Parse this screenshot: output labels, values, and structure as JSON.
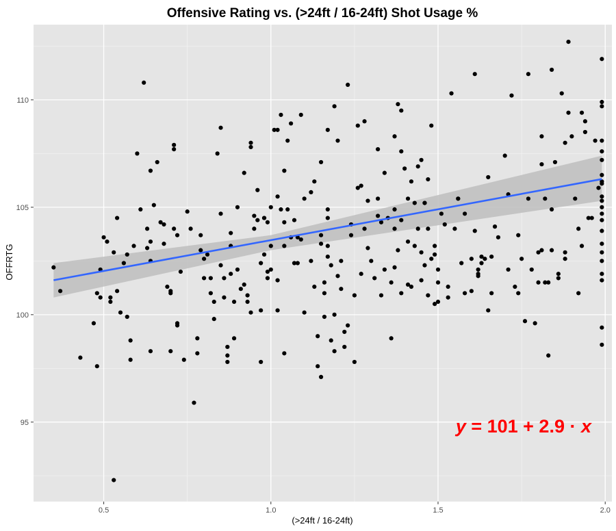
{
  "chart_data": {
    "type": "scatter",
    "title": "Offensive Rating vs. (>24ft / 16-24ft)  Shot Usage %",
    "xlabel": "(>24ft / 16-24ft)",
    "ylabel": "OFFRTG",
    "xlim": [
      0.29,
      2.02
    ],
    "ylim": [
      91.3,
      113.5
    ],
    "x_ticks": [
      0.5,
      1.0,
      1.5,
      2.0
    ],
    "x_tick_labels": [
      "0.5",
      "1.0",
      "1.5",
      "2.0"
    ],
    "y_ticks": [
      95,
      100,
      105,
      110
    ],
    "y_tick_labels": [
      "95",
      "100",
      "105",
      "110"
    ],
    "grid": true,
    "background": "#e5e5e5",
    "point_color": "#000000",
    "fit": {
      "method": "linear regression",
      "intercept": 100.6,
      "slope": 2.87,
      "x_range": [
        0.35,
        1.99
      ],
      "ci_lower": [
        [
          0.35,
          100.8
        ],
        [
          1.0,
          103.0
        ],
        [
          1.99,
          105.3
        ]
      ],
      "ci_upper": [
        [
          0.35,
          102.4
        ],
        [
          1.0,
          103.7
        ],
        [
          1.99,
          107.4
        ]
      ],
      "line_color": "#3366ff",
      "band_color": "#bebebe"
    },
    "annotation": {
      "parts": [
        "y",
        " = 101 + 2.9 · ",
        "x"
      ],
      "color": "#ff0000"
    },
    "points": [
      [
        0.35,
        102.2
      ],
      [
        0.37,
        101.1
      ],
      [
        0.43,
        98.0
      ],
      [
        0.47,
        99.6
      ],
      [
        0.48,
        101.0
      ],
      [
        0.48,
        97.6
      ],
      [
        0.49,
        102.1
      ],
      [
        0.49,
        100.8
      ],
      [
        0.5,
        103.6
      ],
      [
        0.51,
        103.4
      ],
      [
        0.52,
        100.6
      ],
      [
        0.52,
        100.8
      ],
      [
        0.53,
        102.9
      ],
      [
        0.54,
        101.1
      ],
      [
        0.54,
        104.5
      ],
      [
        0.55,
        100.1
      ],
      [
        0.56,
        102.4
      ],
      [
        0.57,
        102.8
      ],
      [
        0.57,
        99.9
      ],
      [
        0.58,
        98.8
      ],
      [
        0.58,
        97.9
      ],
      [
        0.59,
        103.2
      ],
      [
        0.6,
        107.5
      ],
      [
        0.61,
        104.9
      ],
      [
        0.62,
        110.8
      ],
      [
        0.63,
        103.1
      ],
      [
        0.63,
        104.0
      ],
      [
        0.64,
        106.7
      ],
      [
        0.64,
        103.4
      ],
      [
        0.64,
        102.5
      ],
      [
        0.64,
        98.3
      ],
      [
        0.65,
        105.1
      ],
      [
        0.66,
        107.1
      ],
      [
        0.67,
        104.3
      ],
      [
        0.68,
        104.2
      ],
      [
        0.68,
        103.3
      ],
      [
        0.69,
        101.3
      ],
      [
        0.7,
        101.1
      ],
      [
        0.7,
        101.0
      ],
      [
        0.7,
        98.3
      ],
      [
        0.71,
        107.9
      ],
      [
        0.71,
        107.7
      ],
      [
        0.71,
        104.0
      ],
      [
        0.72,
        103.7
      ],
      [
        0.72,
        99.6
      ],
      [
        0.72,
        99.5
      ],
      [
        0.73,
        102.0
      ],
      [
        0.74,
        97.9
      ],
      [
        0.75,
        104.8
      ],
      [
        0.76,
        104.0
      ],
      [
        0.77,
        95.9
      ],
      [
        0.78,
        98.2
      ],
      [
        0.78,
        98.9
      ],
      [
        0.79,
        103.7
      ],
      [
        0.79,
        103.0
      ],
      [
        0.8,
        102.6
      ],
      [
        0.8,
        101.7
      ],
      [
        0.81,
        102.8
      ],
      [
        0.82,
        101.7
      ],
      [
        0.82,
        101.0
      ],
      [
        0.83,
        100.6
      ],
      [
        0.83,
        99.8
      ],
      [
        0.84,
        107.5
      ],
      [
        0.85,
        108.7
      ],
      [
        0.85,
        104.7
      ],
      [
        0.85,
        102.3
      ],
      [
        0.86,
        101.7
      ],
      [
        0.86,
        100.8
      ],
      [
        0.87,
        98.5
      ],
      [
        0.87,
        98.1
      ],
      [
        0.87,
        97.8
      ],
      [
        0.88,
        103.8
      ],
      [
        0.88,
        103.2
      ],
      [
        0.88,
        101.9
      ],
      [
        0.89,
        98.9
      ],
      [
        0.89,
        100.6
      ],
      [
        0.9,
        105.0
      ],
      [
        0.9,
        102.1
      ],
      [
        0.91,
        101.2
      ],
      [
        0.92,
        106.6
      ],
      [
        0.92,
        101.4
      ],
      [
        0.93,
        100.6
      ],
      [
        0.93,
        100.9
      ],
      [
        0.94,
        100.1
      ],
      [
        0.94,
        108.0
      ],
      [
        0.94,
        107.8
      ],
      [
        0.95,
        104.0
      ],
      [
        0.95,
        104.6
      ],
      [
        0.96,
        105.8
      ],
      [
        0.96,
        104.4
      ],
      [
        0.97,
        100.2
      ],
      [
        0.97,
        102.4
      ],
      [
        0.97,
        97.8
      ],
      [
        0.98,
        104.5
      ],
      [
        0.98,
        104.5
      ],
      [
        0.98,
        102.8
      ],
      [
        0.99,
        104.3
      ],
      [
        0.99,
        102.0
      ],
      [
        0.99,
        101.7
      ],
      [
        1.0,
        105.0
      ],
      [
        1.0,
        103.2
      ],
      [
        1.0,
        102.1
      ],
      [
        1.01,
        108.6
      ],
      [
        1.02,
        108.6
      ],
      [
        1.02,
        105.5
      ],
      [
        1.02,
        101.6
      ],
      [
        1.02,
        100.2
      ],
      [
        1.03,
        109.3
      ],
      [
        1.03,
        104.9
      ],
      [
        1.04,
        106.7
      ],
      [
        1.04,
        104.3
      ],
      [
        1.04,
        103.2
      ],
      [
        1.04,
        98.2
      ],
      [
        1.05,
        108.1
      ],
      [
        1.05,
        104.9
      ],
      [
        1.06,
        108.9
      ],
      [
        1.06,
        103.6
      ],
      [
        1.07,
        102.4
      ],
      [
        1.07,
        104.4
      ],
      [
        1.08,
        103.6
      ],
      [
        1.08,
        102.4
      ],
      [
        1.09,
        109.3
      ],
      [
        1.09,
        103.5
      ],
      [
        1.1,
        105.4
      ],
      [
        1.1,
        100.1
      ],
      [
        1.12,
        105.7
      ],
      [
        1.12,
        102.5
      ],
      [
        1.13,
        106.2
      ],
      [
        1.13,
        101.3
      ],
      [
        1.14,
        99.0
      ],
      [
        1.14,
        97.6
      ],
      [
        1.15,
        107.1
      ],
      [
        1.15,
        103.7
      ],
      [
        1.15,
        103.3
      ],
      [
        1.15,
        97.1
      ],
      [
        1.16,
        101.5
      ],
      [
        1.16,
        99.9
      ],
      [
        1.16,
        101.0
      ],
      [
        1.17,
        108.6
      ],
      [
        1.17,
        104.5
      ],
      [
        1.17,
        104.9
      ],
      [
        1.17,
        103.2
      ],
      [
        1.17,
        102.7
      ],
      [
        1.18,
        102.3
      ],
      [
        1.18,
        98.8
      ],
      [
        1.19,
        109.7
      ],
      [
        1.19,
        98.3
      ],
      [
        1.19,
        100.0
      ],
      [
        1.2,
        108.1
      ],
      [
        1.2,
        101.8
      ],
      [
        1.21,
        102.5
      ],
      [
        1.21,
        101.2
      ],
      [
        1.22,
        99.2
      ],
      [
        1.22,
        98.5
      ],
      [
        1.23,
        110.7
      ],
      [
        1.23,
        99.5
      ],
      [
        1.24,
        104.2
      ],
      [
        1.24,
        103.7
      ],
      [
        1.25,
        100.9
      ],
      [
        1.25,
        97.8
      ],
      [
        1.26,
        108.8
      ],
      [
        1.26,
        105.9
      ],
      [
        1.27,
        106.0
      ],
      [
        1.27,
        101.9
      ],
      [
        1.28,
        109.0
      ],
      [
        1.28,
        104.0
      ],
      [
        1.29,
        105.3
      ],
      [
        1.29,
        103.1
      ],
      [
        1.3,
        102.5
      ],
      [
        1.31,
        101.7
      ],
      [
        1.32,
        107.7
      ],
      [
        1.32,
        105.4
      ],
      [
        1.32,
        104.6
      ],
      [
        1.33,
        104.3
      ],
      [
        1.33,
        100.9
      ],
      [
        1.34,
        106.6
      ],
      [
        1.34,
        102.1
      ],
      [
        1.35,
        104.5
      ],
      [
        1.36,
        101.5
      ],
      [
        1.36,
        98.9
      ],
      [
        1.37,
        108.3
      ],
      [
        1.37,
        104.9
      ],
      [
        1.37,
        104.0
      ],
      [
        1.37,
        102.2
      ],
      [
        1.38,
        109.8
      ],
      [
        1.38,
        103.0
      ],
      [
        1.39,
        109.5
      ],
      [
        1.39,
        107.6
      ],
      [
        1.39,
        104.4
      ],
      [
        1.39,
        101.0
      ],
      [
        1.4,
        106.8
      ],
      [
        1.41,
        105.4
      ],
      [
        1.41,
        103.4
      ],
      [
        1.41,
        101.4
      ],
      [
        1.42,
        106.2
      ],
      [
        1.42,
        101.3
      ],
      [
        1.43,
        105.2
      ],
      [
        1.43,
        103.2
      ],
      [
        1.44,
        106.9
      ],
      [
        1.44,
        104.0
      ],
      [
        1.45,
        107.2
      ],
      [
        1.45,
        102.9
      ],
      [
        1.45,
        101.6
      ],
      [
        1.46,
        105.2
      ],
      [
        1.46,
        105.2
      ],
      [
        1.46,
        102.3
      ],
      [
        1.47,
        106.3
      ],
      [
        1.47,
        104.0
      ],
      [
        1.47,
        100.9
      ],
      [
        1.48,
        108.8
      ],
      [
        1.48,
        102.6
      ],
      [
        1.49,
        103.2
      ],
      [
        1.49,
        102.8
      ],
      [
        1.49,
        100.5
      ],
      [
        1.5,
        102.1
      ],
      [
        1.5,
        101.5
      ],
      [
        1.5,
        100.6
      ],
      [
        1.51,
        104.7
      ],
      [
        1.52,
        104.2
      ],
      [
        1.53,
        101.3
      ],
      [
        1.53,
        100.8
      ],
      [
        1.54,
        110.3
      ],
      [
        1.55,
        104.0
      ],
      [
        1.56,
        105.4
      ],
      [
        1.56,
        105.4
      ],
      [
        1.57,
        102.4
      ],
      [
        1.58,
        104.7
      ],
      [
        1.58,
        101.0
      ],
      [
        1.6,
        102.6
      ],
      [
        1.6,
        101.1
      ],
      [
        1.61,
        111.2
      ],
      [
        1.61,
        103.9
      ],
      [
        1.62,
        102.1
      ],
      [
        1.62,
        101.8
      ],
      [
        1.62,
        101.9
      ],
      [
        1.63,
        102.7
      ],
      [
        1.63,
        102.4
      ],
      [
        1.64,
        102.6
      ],
      [
        1.65,
        106.4
      ],
      [
        1.65,
        100.2
      ],
      [
        1.66,
        102.7
      ],
      [
        1.66,
        101.0
      ],
      [
        1.67,
        104.1
      ],
      [
        1.68,
        103.6
      ],
      [
        1.7,
        107.4
      ],
      [
        1.71,
        105.6
      ],
      [
        1.71,
        102.1
      ],
      [
        1.72,
        110.2
      ],
      [
        1.73,
        101.3
      ],
      [
        1.74,
        103.7
      ],
      [
        1.74,
        101.0
      ],
      [
        1.75,
        102.6
      ],
      [
        1.76,
        99.7
      ],
      [
        1.77,
        111.2
      ],
      [
        1.77,
        105.4
      ],
      [
        1.78,
        102.1
      ],
      [
        1.79,
        99.6
      ],
      [
        1.8,
        102.9
      ],
      [
        1.8,
        101.5
      ],
      [
        1.81,
        108.3
      ],
      [
        1.81,
        107.0
      ],
      [
        1.81,
        103.0
      ],
      [
        1.82,
        105.4
      ],
      [
        1.82,
        101.5
      ],
      [
        1.83,
        98.1
      ],
      [
        1.83,
        101.5
      ],
      [
        1.84,
        111.4
      ],
      [
        1.84,
        104.9
      ],
      [
        1.84,
        103.0
      ],
      [
        1.85,
        107.1
      ],
      [
        1.86,
        101.7
      ],
      [
        1.86,
        101.9
      ],
      [
        1.87,
        110.3
      ],
      [
        1.88,
        108.0
      ],
      [
        1.88,
        102.9
      ],
      [
        1.88,
        102.6
      ],
      [
        1.89,
        112.7
      ],
      [
        1.89,
        109.4
      ],
      [
        1.9,
        108.3
      ],
      [
        1.91,
        105.4
      ],
      [
        1.92,
        101.0
      ],
      [
        1.92,
        104.0
      ],
      [
        1.93,
        109.4
      ],
      [
        1.93,
        103.2
      ],
      [
        1.94,
        109.0
      ],
      [
        1.94,
        108.5
      ],
      [
        1.95,
        104.5
      ],
      [
        1.96,
        104.5
      ],
      [
        1.97,
        108.1
      ],
      [
        1.98,
        105.9
      ],
      [
        1.99,
        106.1
      ],
      [
        1.99,
        107.2
      ],
      [
        1.99,
        104.7
      ],
      [
        1.99,
        111.9
      ],
      [
        1.99,
        105.5
      ],
      [
        1.99,
        103.3
      ],
      [
        1.99,
        108.1
      ],
      [
        1.99,
        98.6
      ],
      [
        1.99,
        102.5
      ],
      [
        1.99,
        101.9
      ],
      [
        1.99,
        105.3
      ],
      [
        1.99,
        105.0
      ],
      [
        1.99,
        106.2
      ],
      [
        1.99,
        107.6
      ],
      [
        1.99,
        104.4
      ],
      [
        1.99,
        103.9
      ],
      [
        1.99,
        101.6
      ],
      [
        1.99,
        109.9
      ],
      [
        1.99,
        102.9
      ],
      [
        1.99,
        106.5
      ],
      [
        1.99,
        99.4
      ],
      [
        1.99,
        109.7
      ],
      [
        0.53,
        92.3
      ]
    ]
  }
}
